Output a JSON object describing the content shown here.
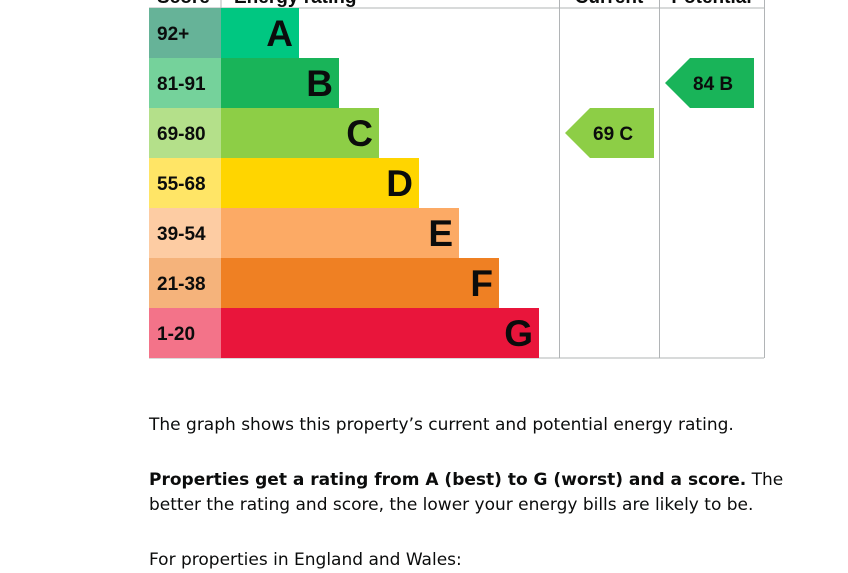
{
  "chart_data": {
    "type": "bar",
    "headers": {
      "score": "Score",
      "rating": "Energy rating",
      "current": "Current",
      "potential": "Potential"
    },
    "bands": [
      {
        "score": "92+",
        "letter": "A",
        "color": "#008054",
        "score_bg": "#66b398",
        "bar": "#00c781"
      },
      {
        "score": "81-91",
        "letter": "B",
        "color": "#19b459",
        "score_bg": "#75d29b",
        "bar": "#19b459"
      },
      {
        "score": "69-80",
        "letter": "C",
        "color": "#8dce46",
        "score_bg": "#b4e08a",
        "bar": "#8dce46"
      },
      {
        "score": "55-68",
        "letter": "D",
        "color": "#ffd500",
        "score_bg": "#ffe566",
        "bar": "#ffd500"
      },
      {
        "score": "39-54",
        "letter": "E",
        "color": "#fcaa65",
        "score_bg": "#fdcca3",
        "bar": "#fcaa65"
      },
      {
        "score": "21-38",
        "letter": "F",
        "color": "#ef8023",
        "score_bg": "#f5b37b",
        "bar": "#ef8023"
      },
      {
        "score": "1-20",
        "letter": "G",
        "color": "#e9153b",
        "score_bg": "#f37389",
        "bar": "#e9153b"
      }
    ],
    "current": {
      "value": 69,
      "letter": "C",
      "color": "#8dce46",
      "label": "69 C"
    },
    "potential": {
      "value": 84,
      "letter": "B",
      "color": "#19b459",
      "label": "84 B"
    }
  },
  "text": {
    "p1": "The graph shows this property’s current and potential energy rating.",
    "p2_bold": "Properties get a rating from A (best) to G (worst) and a score.",
    "p2_rest": " The better the rating and score, the lower your energy bills are likely to be.",
    "p3": "For properties in England and Wales:"
  }
}
